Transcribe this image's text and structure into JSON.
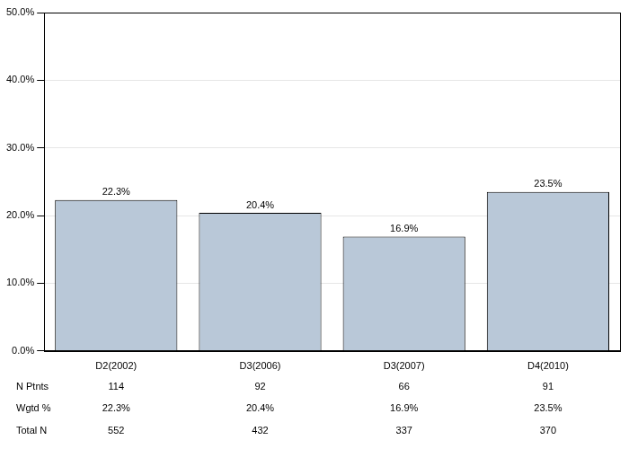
{
  "chart_data": {
    "type": "bar",
    "categories": [
      "D2(2002)",
      "D3(2006)",
      "D3(2007)",
      "D4(2010)"
    ],
    "values": [
      22.3,
      20.4,
      16.9,
      23.5
    ],
    "value_labels": [
      "22.3%",
      "20.4%",
      "16.9%",
      "23.5%"
    ],
    "data_labels": true,
    "color": "#b9c8d8",
    "ylim": [
      0,
      50
    ],
    "yticks": [
      {
        "value": 0,
        "label": "0.0%"
      },
      {
        "value": 10,
        "label": "10.0%"
      },
      {
        "value": 20,
        "label": "20.0%"
      },
      {
        "value": 30,
        "label": "30.0%"
      },
      {
        "value": 40,
        "label": "40.0%"
      },
      {
        "value": 50,
        "label": "50.0%"
      }
    ],
    "grid": true
  },
  "table": {
    "rows": [
      {
        "label": "N Ptnts",
        "values": [
          114,
          92,
          66,
          91
        ]
      },
      {
        "label": "Wgtd %",
        "values": [
          22.3,
          20.4,
          16.9,
          23.5
        ],
        "value_labels": [
          "22.3%",
          "20.4%",
          "16.9%",
          "23.5%"
        ]
      },
      {
        "label": "Total N",
        "values": [
          552,
          432,
          337,
          370
        ]
      }
    ]
  }
}
